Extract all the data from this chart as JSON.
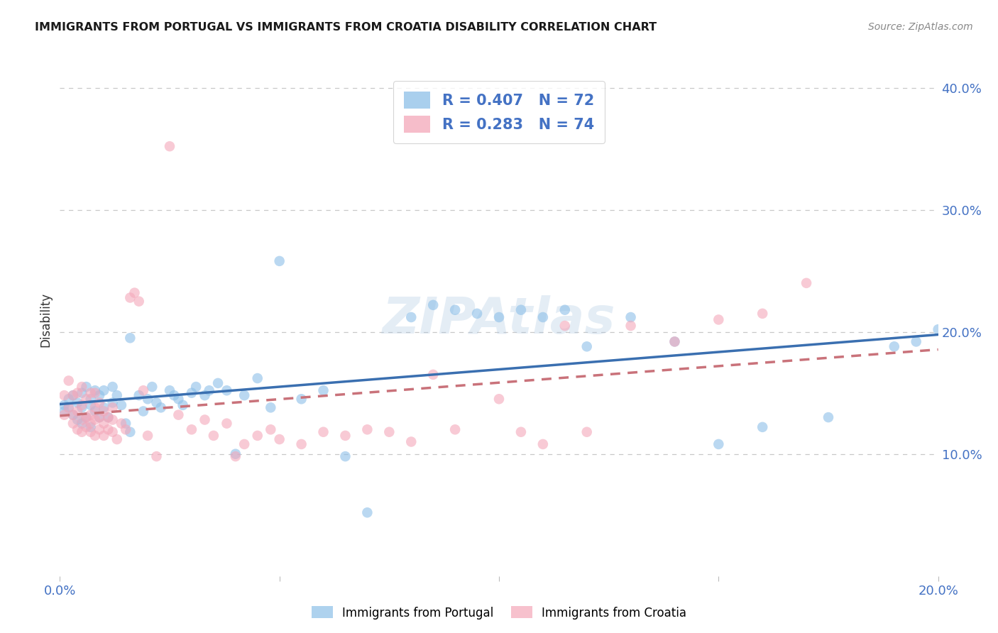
{
  "title": "IMMIGRANTS FROM PORTUGAL VS IMMIGRANTS FROM CROATIA DISABILITY CORRELATION CHART",
  "source": "Source: ZipAtlas.com",
  "ylabel": "Disability",
  "xlim": [
    0.0,
    0.2
  ],
  "ylim": [
    0.0,
    0.42
  ],
  "portugal_R": 0.407,
  "portugal_N": 72,
  "croatia_R": 0.283,
  "croatia_N": 74,
  "portugal_color": "#8cbfe8",
  "croatia_color": "#f4a7b9",
  "portugal_line_color": "#3a6fb0",
  "croatia_line_color": "#c9727a",
  "portugal_x": [
    0.001,
    0.001,
    0.002,
    0.002,
    0.003,
    0.003,
    0.004,
    0.004,
    0.005,
    0.005,
    0.005,
    0.006,
    0.006,
    0.007,
    0.007,
    0.007,
    0.008,
    0.008,
    0.009,
    0.009,
    0.01,
    0.01,
    0.011,
    0.012,
    0.012,
    0.013,
    0.014,
    0.015,
    0.016,
    0.016,
    0.018,
    0.019,
    0.02,
    0.021,
    0.022,
    0.023,
    0.025,
    0.026,
    0.027,
    0.028,
    0.03,
    0.031,
    0.033,
    0.034,
    0.036,
    0.038,
    0.04,
    0.042,
    0.045,
    0.048,
    0.05,
    0.055,
    0.06,
    0.065,
    0.07,
    0.08,
    0.085,
    0.09,
    0.095,
    0.1,
    0.105,
    0.11,
    0.115,
    0.12,
    0.13,
    0.14,
    0.15,
    0.16,
    0.175,
    0.19,
    0.195,
    0.2
  ],
  "portugal_y": [
    0.135,
    0.14,
    0.138,
    0.145,
    0.132,
    0.148,
    0.128,
    0.142,
    0.125,
    0.138,
    0.15,
    0.13,
    0.155,
    0.122,
    0.14,
    0.145,
    0.135,
    0.152,
    0.13,
    0.148,
    0.138,
    0.152,
    0.13,
    0.142,
    0.155,
    0.148,
    0.14,
    0.125,
    0.195,
    0.118,
    0.148,
    0.135,
    0.145,
    0.155,
    0.142,
    0.138,
    0.152,
    0.148,
    0.145,
    0.14,
    0.15,
    0.155,
    0.148,
    0.152,
    0.158,
    0.152,
    0.1,
    0.148,
    0.162,
    0.138,
    0.258,
    0.145,
    0.152,
    0.098,
    0.052,
    0.212,
    0.222,
    0.218,
    0.215,
    0.212,
    0.218,
    0.212,
    0.218,
    0.188,
    0.212,
    0.192,
    0.108,
    0.122,
    0.13,
    0.188,
    0.192,
    0.202
  ],
  "croatia_x": [
    0.001,
    0.001,
    0.002,
    0.002,
    0.003,
    0.003,
    0.003,
    0.004,
    0.004,
    0.004,
    0.005,
    0.005,
    0.005,
    0.005,
    0.006,
    0.006,
    0.006,
    0.007,
    0.007,
    0.007,
    0.007,
    0.008,
    0.008,
    0.008,
    0.008,
    0.009,
    0.009,
    0.009,
    0.01,
    0.01,
    0.01,
    0.011,
    0.011,
    0.012,
    0.012,
    0.012,
    0.013,
    0.014,
    0.015,
    0.016,
    0.017,
    0.018,
    0.019,
    0.02,
    0.022,
    0.025,
    0.027,
    0.03,
    0.033,
    0.035,
    0.038,
    0.04,
    0.042,
    0.045,
    0.048,
    0.05,
    0.055,
    0.06,
    0.065,
    0.07,
    0.075,
    0.08,
    0.085,
    0.09,
    0.1,
    0.105,
    0.11,
    0.115,
    0.12,
    0.13,
    0.14,
    0.15,
    0.16,
    0.17
  ],
  "croatia_y": [
    0.132,
    0.148,
    0.138,
    0.16,
    0.125,
    0.132,
    0.148,
    0.12,
    0.135,
    0.15,
    0.118,
    0.128,
    0.14,
    0.155,
    0.122,
    0.13,
    0.145,
    0.118,
    0.125,
    0.132,
    0.15,
    0.115,
    0.128,
    0.138,
    0.15,
    0.12,
    0.13,
    0.142,
    0.115,
    0.125,
    0.135,
    0.12,
    0.13,
    0.118,
    0.128,
    0.138,
    0.112,
    0.125,
    0.12,
    0.228,
    0.232,
    0.225,
    0.152,
    0.115,
    0.098,
    0.352,
    0.132,
    0.12,
    0.128,
    0.115,
    0.125,
    0.098,
    0.108,
    0.115,
    0.12,
    0.112,
    0.108,
    0.118,
    0.115,
    0.12,
    0.118,
    0.11,
    0.165,
    0.12,
    0.145,
    0.118,
    0.108,
    0.205,
    0.118,
    0.205,
    0.192,
    0.21,
    0.215,
    0.24
  ]
}
